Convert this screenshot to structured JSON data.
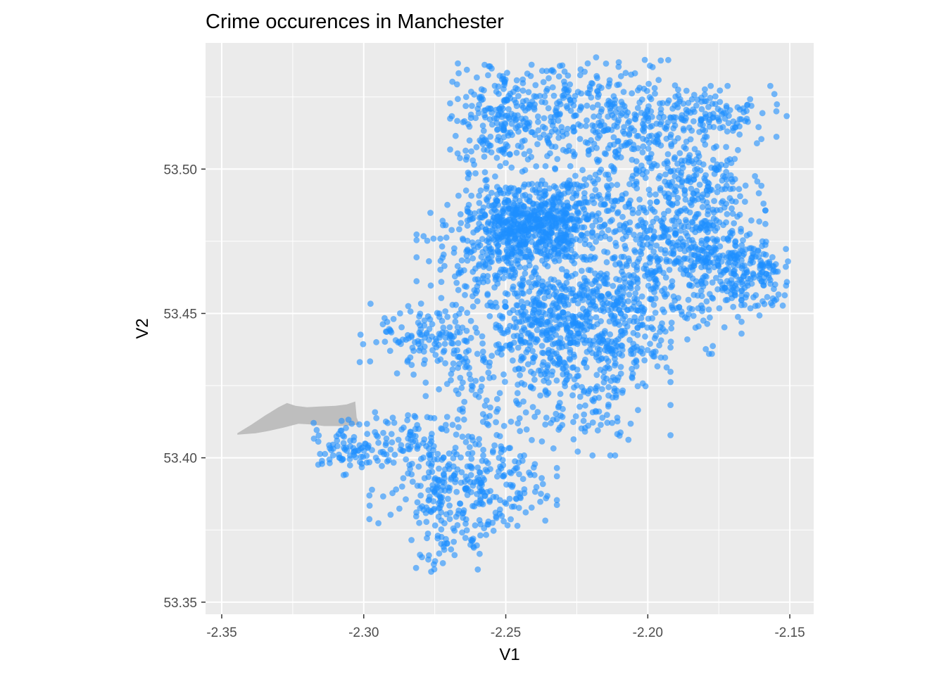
{
  "chart_data": {
    "type": "scatter",
    "title": "Crime occurences in Manchester",
    "xlabel": "V1",
    "ylabel": "V2",
    "xlim": [
      -2.3557,
      -2.1416
    ],
    "ylim": [
      53.3458,
      53.5437
    ],
    "x_ticks": [
      -2.35,
      -2.3,
      -2.25,
      -2.2,
      -2.15
    ],
    "x_tick_labels": [
      "-2.35",
      "-2.30",
      "-2.25",
      "-2.20",
      "-2.15"
    ],
    "y_ticks": [
      53.35,
      53.4,
      53.45,
      53.5
    ],
    "y_tick_labels": [
      "53.35",
      "53.40",
      "53.45",
      "53.50"
    ],
    "grid": true,
    "legend": "none",
    "point_color": "#1E90FF",
    "point_alpha": 0.6,
    "panel_background": "#EBEBEB",
    "grid_color": "#FFFFFF",
    "region_fill": "#BEBEBE",
    "region_polygon": [
      [
        -2.3445,
        53.4085
      ],
      [
        -2.3395,
        53.4115
      ],
      [
        -2.3345,
        53.4148
      ],
      [
        -2.33,
        53.4175
      ],
      [
        -2.327,
        53.419
      ],
      [
        -2.324,
        53.418
      ],
      [
        -2.32,
        53.4175
      ],
      [
        -2.315,
        53.4178
      ],
      [
        -2.31,
        53.418
      ],
      [
        -2.306,
        53.4185
      ],
      [
        -2.303,
        53.4195
      ],
      [
        -2.3025,
        53.414
      ],
      [
        -2.3015,
        53.4115
      ],
      [
        -2.305,
        53.4112
      ],
      [
        -2.308,
        53.411
      ],
      [
        -2.314,
        53.411
      ],
      [
        -2.318,
        53.4115
      ],
      [
        -2.323,
        53.4118
      ],
      [
        -2.328,
        53.4105
      ],
      [
        -2.334,
        53.4092
      ],
      [
        -2.338,
        53.4085
      ],
      [
        -2.3445,
        53.408
      ]
    ],
    "point_clusters": [
      {
        "cx": -2.2415,
        "cy": 53.4815,
        "sx": 0.01,
        "sy": 0.006,
        "n": 520
      },
      {
        "cx": -2.225,
        "cy": 53.523,
        "sx": 0.02,
        "sy": 0.01,
        "n": 260
      },
      {
        "cx": -2.205,
        "cy": 53.512,
        "sx": 0.015,
        "sy": 0.008,
        "n": 200
      },
      {
        "cx": -2.252,
        "cy": 53.515,
        "sx": 0.008,
        "sy": 0.011,
        "n": 180
      },
      {
        "cx": -2.175,
        "cy": 53.52,
        "sx": 0.012,
        "sy": 0.004,
        "n": 100
      },
      {
        "cx": -2.182,
        "cy": 53.495,
        "sx": 0.01,
        "sy": 0.007,
        "n": 160
      },
      {
        "cx": -2.185,
        "cy": 53.478,
        "sx": 0.012,
        "sy": 0.006,
        "n": 160
      },
      {
        "cx": -2.17,
        "cy": 53.465,
        "sx": 0.01,
        "sy": 0.006,
        "n": 200
      },
      {
        "cx": -2.22,
        "cy": 53.485,
        "sx": 0.015,
        "sy": 0.01,
        "n": 260
      },
      {
        "cx": -2.2,
        "cy": 53.458,
        "sx": 0.015,
        "sy": 0.01,
        "n": 300
      },
      {
        "cx": -2.23,
        "cy": 53.452,
        "sx": 0.012,
        "sy": 0.008,
        "n": 280
      },
      {
        "cx": -2.255,
        "cy": 53.47,
        "sx": 0.012,
        "sy": 0.008,
        "n": 200
      },
      {
        "cx": -2.275,
        "cy": 53.442,
        "sx": 0.012,
        "sy": 0.006,
        "n": 140
      },
      {
        "cx": -2.225,
        "cy": 53.425,
        "sx": 0.015,
        "sy": 0.011,
        "n": 240
      },
      {
        "cx": -2.265,
        "cy": 53.425,
        "sx": 0.006,
        "sy": 0.008,
        "n": 50
      },
      {
        "cx": -2.24,
        "cy": 53.44,
        "sx": 0.008,
        "sy": 0.008,
        "n": 120
      },
      {
        "cx": -2.265,
        "cy": 53.39,
        "sx": 0.015,
        "sy": 0.009,
        "n": 300
      },
      {
        "cx": -2.285,
        "cy": 53.405,
        "sx": 0.015,
        "sy": 0.005,
        "n": 120
      },
      {
        "cx": -2.305,
        "cy": 53.403,
        "sx": 0.005,
        "sy": 0.004,
        "n": 50
      },
      {
        "cx": -2.27,
        "cy": 53.37,
        "sx": 0.006,
        "sy": 0.005,
        "n": 40
      },
      {
        "cx": -2.16,
        "cy": 53.462,
        "sx": 0.007,
        "sy": 0.006,
        "n": 50
      },
      {
        "cx": -2.212,
        "cy": 53.438,
        "sx": 0.007,
        "sy": 0.006,
        "n": 80
      }
    ],
    "point_seed": 20240613
  }
}
